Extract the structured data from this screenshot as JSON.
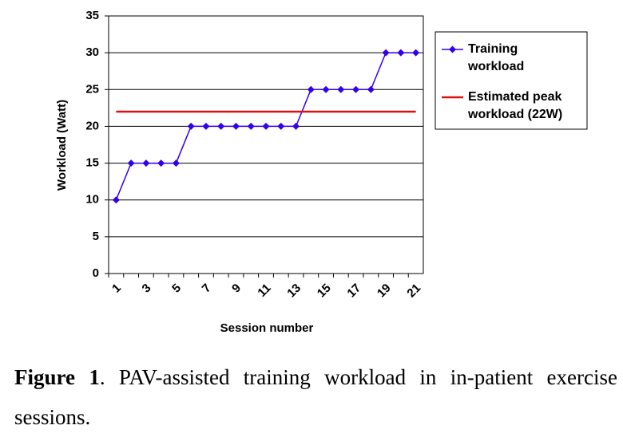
{
  "chart_data": {
    "type": "line",
    "x_label": "Session number",
    "y_label": "Workload (Watt)",
    "categories": [
      "1",
      null,
      "3",
      null,
      "5",
      null,
      "7",
      null,
      "9",
      null,
      "11",
      null,
      "13",
      null,
      "15",
      null,
      "17",
      null,
      "19",
      null,
      "21"
    ],
    "series": [
      {
        "name": "Training workload",
        "color": "#3300ee",
        "marker": "diamond",
        "values": [
          10,
          15,
          15,
          15,
          15,
          20,
          20,
          20,
          20,
          20,
          20,
          20,
          20,
          25,
          25,
          25,
          25,
          25,
          30,
          30,
          30
        ]
      },
      {
        "name": "Estimated peak workload (22W)",
        "color": "#dd1111",
        "marker": null,
        "values": [
          22,
          22,
          22,
          22,
          22,
          22,
          22,
          22,
          22,
          22,
          22,
          22,
          22,
          22,
          22,
          22,
          22,
          22,
          22,
          22,
          22
        ]
      }
    ],
    "ylim": [
      0,
      35
    ],
    "yticks": [
      0,
      5,
      10,
      15,
      20,
      25,
      30,
      35
    ],
    "grid": true,
    "legend": "right"
  },
  "caption": {
    "label": "Figure 1",
    "text": ". PAV-assisted training workload in in-patient exercise sessions."
  }
}
